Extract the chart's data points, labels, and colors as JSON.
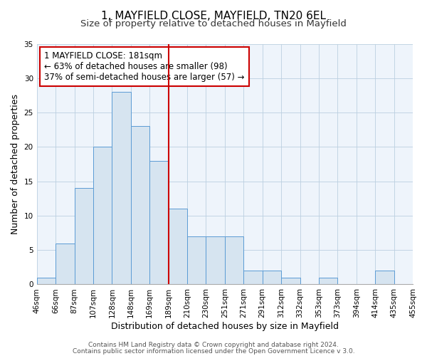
{
  "title": "1, MAYFIELD CLOSE, MAYFIELD, TN20 6EL",
  "subtitle": "Size of property relative to detached houses in Mayfield",
  "xlabel": "Distribution of detached houses by size in Mayfield",
  "ylabel": "Number of detached properties",
  "bin_labels": [
    "46sqm",
    "66sqm",
    "87sqm",
    "107sqm",
    "128sqm",
    "148sqm",
    "169sqm",
    "189sqm",
    "210sqm",
    "230sqm",
    "251sqm",
    "271sqm",
    "291sqm",
    "312sqm",
    "332sqm",
    "353sqm",
    "373sqm",
    "394sqm",
    "414sqm",
    "435sqm",
    "455sqm"
  ],
  "bar_heights": [
    1,
    6,
    14,
    20,
    28,
    23,
    18,
    11,
    7,
    7,
    7,
    2,
    2,
    1,
    0,
    1,
    0,
    0,
    2,
    0
  ],
  "bar_color": "#d6e4f0",
  "bar_edgecolor": "#5b9bd5",
  "vline_x": 7,
  "vline_color": "#cc0000",
  "annotation_title": "1 MAYFIELD CLOSE: 181sqm",
  "annotation_line1": "← 63% of detached houses are smaller (98)",
  "annotation_line2": "37% of semi-detached houses are larger (57) →",
  "annotation_box_color": "#ffffff",
  "annotation_box_edgecolor": "#cc0000",
  "ylim": [
    0,
    35
  ],
  "yticks": [
    0,
    5,
    10,
    15,
    20,
    25,
    30,
    35
  ],
  "footer1": "Contains HM Land Registry data © Crown copyright and database right 2024.",
  "footer2": "Contains public sector information licensed under the Open Government Licence v 3.0.",
  "title_fontsize": 11,
  "subtitle_fontsize": 9.5,
  "axis_label_fontsize": 9,
  "tick_fontsize": 7.5,
  "annotation_fontsize": 8.5,
  "footer_fontsize": 6.5
}
